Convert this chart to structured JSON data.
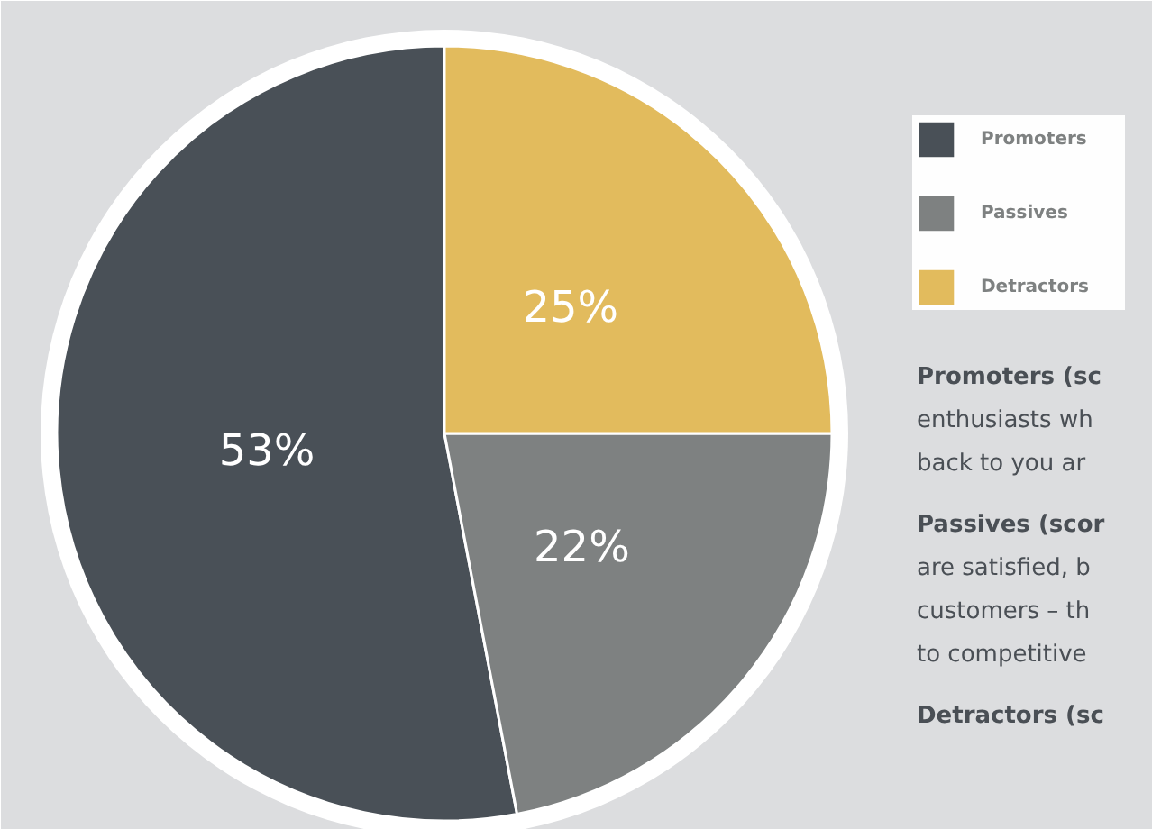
{
  "chart_data": {
    "type": "pie",
    "categories": [
      "Promoters",
      "Passives",
      "Detractors"
    ],
    "values": [
      53,
      22,
      25
    ],
    "colors": [
      "#495057",
      "#7e8181",
      "#e2bb5d"
    ],
    "value_labels": [
      "53%",
      "22%",
      "25%"
    ],
    "legend": "top right",
    "annotations": [
      "Promoters (sc",
      "enthusiasts wh",
      "back to you ar",
      "Passives (scor",
      "are satisfied, b",
      "customers – th",
      "to competitive",
      "Detractors (sc"
    ]
  }
}
